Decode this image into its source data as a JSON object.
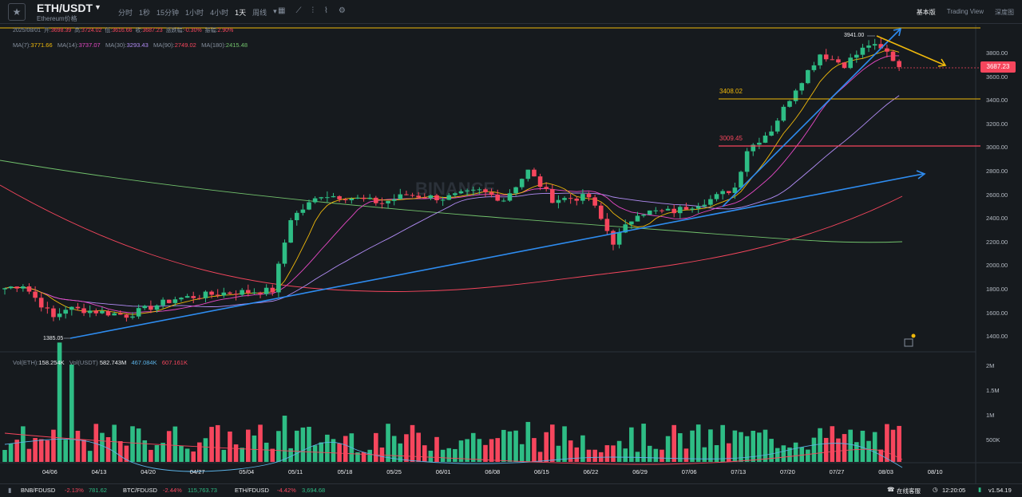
{
  "header": {
    "symbol": "ETH/USDT",
    "subtitle": "Ethereum价格",
    "intervals": [
      "分时",
      "1秒",
      "15分钟",
      "1小时",
      "4小时",
      "1天",
      "周线"
    ],
    "active_interval": "1天",
    "views": [
      "基本版",
      "Trading View",
      "深度图"
    ]
  },
  "ohlc": {
    "date": "2025/08/01",
    "open_label": "开:",
    "open": "3698.39",
    "high_label": "高:",
    "high": "3724.02",
    "low_label": "低:",
    "low": "3616.66",
    "close_label": "收:",
    "close": "3687.23",
    "chg_label": "涨跌幅:",
    "chg": "-0.30%",
    "amp_label": "振幅:",
    "amp": "2.90%"
  },
  "ma": [
    {
      "label": "MA(7):",
      "value": "3771.66",
      "color": "#f0b90b"
    },
    {
      "label": "MA(14):",
      "value": "3737.07",
      "color": "#e849c7"
    },
    {
      "label": "MA(30):",
      "value": "3293.43",
      "color": "#b38df7"
    },
    {
      "label": "MA(90):",
      "value": "2749.02",
      "color": "#f6465d"
    },
    {
      "label": "MA(180):",
      "value": "2415.48",
      "color": "#72c26c"
    }
  ],
  "vol": [
    {
      "label": "Vol(ETH):",
      "value": "158.254K",
      "color": "#eaecef"
    },
    {
      "label": "Vol(USDT)",
      "value": "582.743M",
      "color": "#eaecef"
    },
    {
      "label": "",
      "value": "467.084K",
      "color": "#5ab1e5"
    },
    {
      "label": "",
      "value": "607.161K",
      "color": "#f6465d"
    }
  ],
  "price_axis": [
    "3800.00",
    "3600.00",
    "3400.00",
    "3200.00",
    "3000.00",
    "2800.00",
    "2600.00",
    "2400.00",
    "2200.00",
    "2000.00",
    "1800.00",
    "1600.00",
    "1400.00"
  ],
  "vol_axis": [
    "2M",
    "1.5M",
    "1M",
    "500K"
  ],
  "date_axis": [
    "04/06",
    "04/13",
    "04/20",
    "04/27",
    "05/04",
    "05/11",
    "05/18",
    "05/25",
    "06/01",
    "06/08",
    "06/15",
    "06/22",
    "06/29",
    "07/06",
    "07/13",
    "07/20",
    "07/27",
    "08/03",
    "08/10"
  ],
  "current_price": "3687.23",
  "levels": [
    {
      "label": "3408.02",
      "color": "#f0b90b"
    },
    {
      "label": "3009.45",
      "color": "#f6465d"
    }
  ],
  "annotations": {
    "high": "3941.00",
    "low": "1385.05"
  },
  "watermark": "BINANCE",
  "status": {
    "tickers": [
      {
        "sym": "BNB/FDUSD",
        "chg": "-2.13%",
        "price": "781.62"
      },
      {
        "sym": "BTC/FDUSD",
        "chg": "-2.44%",
        "price": "115,763.73"
      },
      {
        "sym": "ETH/FDUSD",
        "chg": "-4.42%",
        "price": "3,694.68"
      }
    ],
    "support": "在线客服",
    "time": "12:20:05",
    "version": "v1.54.19"
  },
  "colors": {
    "up": "#2ebd85",
    "down": "#f6465d",
    "trend": "#2e8cf0",
    "arrow": "#f0b90b"
  },
  "icons": [
    "star-icon",
    "crosshair-icon",
    "draw-icon",
    "candle-type-icon",
    "indicator-icon",
    "settings-icon",
    "headset-icon",
    "clock-icon",
    "screenshot-icon"
  ]
}
